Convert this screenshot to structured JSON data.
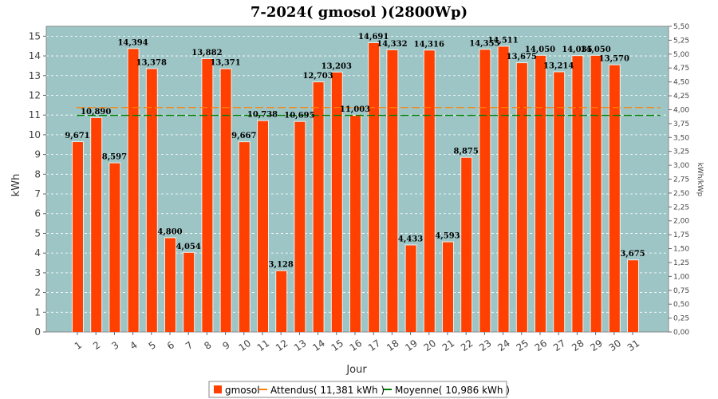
{
  "chart_data": {
    "type": "bar",
    "title": "7-2024( gmosol )(2800Wp)",
    "xlabel": "Jour",
    "ylabel": "kWh",
    "y2label": "kWh/kWp",
    "ylim": [
      0,
      15.5
    ],
    "y2lim": [
      0,
      5.5
    ],
    "y_ticks": [
      "0",
      "1",
      "2",
      "3",
      "4",
      "5",
      "6",
      "7",
      "8",
      "9",
      "10",
      "11",
      "12",
      "13",
      "14",
      "15"
    ],
    "y2_ticks": [
      "0,00",
      "0,25",
      "0,50",
      "0,75",
      "1,00",
      "1,25",
      "1,50",
      "1,75",
      "2,00",
      "2,25",
      "2,50",
      "2,75",
      "3,00",
      "3,25",
      "3,50",
      "3,75",
      "4,00",
      "4,25",
      "4,50",
      "4,75",
      "5,00",
      "5,25",
      "5,50"
    ],
    "categories": [
      "1",
      "2",
      "3",
      "4",
      "5",
      "6",
      "7",
      "8",
      "9",
      "10",
      "11",
      "12",
      "13",
      "14",
      "15",
      "16",
      "17",
      "18",
      "19",
      "20",
      "21",
      "22",
      "23",
      "24",
      "25",
      "26",
      "27",
      "28",
      "29",
      "30",
      "31"
    ],
    "series": [
      {
        "name": "gmosol",
        "color": "#ff4000",
        "values": [
          9.671,
          10.89,
          8.597,
          14.394,
          13.378,
          4.8,
          4.054,
          13.882,
          13.371,
          9.667,
          10.738,
          3.128,
          10.695,
          12.703,
          13.203,
          11.003,
          14.691,
          14.332,
          4.433,
          14.316,
          4.593,
          8.875,
          14.355,
          14.511,
          13.675,
          14.05,
          13.214,
          14.035,
          14.05,
          13.57,
          3.675
        ],
        "labels": [
          "9,671",
          "10,890",
          "8,597",
          "14,394",
          "13,378",
          "4,800",
          "4,054",
          "13,882",
          "13,371",
          "9,667",
          "10,738",
          "3,128",
          "10,695",
          "12,703",
          "13,203",
          "11,003",
          "14,691",
          "14,332",
          "4,433",
          "14,316",
          "4,593",
          "8,875",
          "14,355",
          "14,511",
          "13,675",
          "14,050",
          "13,214",
          "14,035",
          "14,050",
          "13,570",
          "3,675"
        ]
      }
    ],
    "lines": [
      {
        "name": "Attendus( 11,381 kWh )",
        "value": 11.381,
        "color": "#ff8000"
      },
      {
        "name": "Moyenne( 10,986 kWh )",
        "value": 10.986,
        "color": "#008000"
      }
    ],
    "legend_position": "bottom",
    "plot_background": "#9ec5c5",
    "grid": true
  }
}
